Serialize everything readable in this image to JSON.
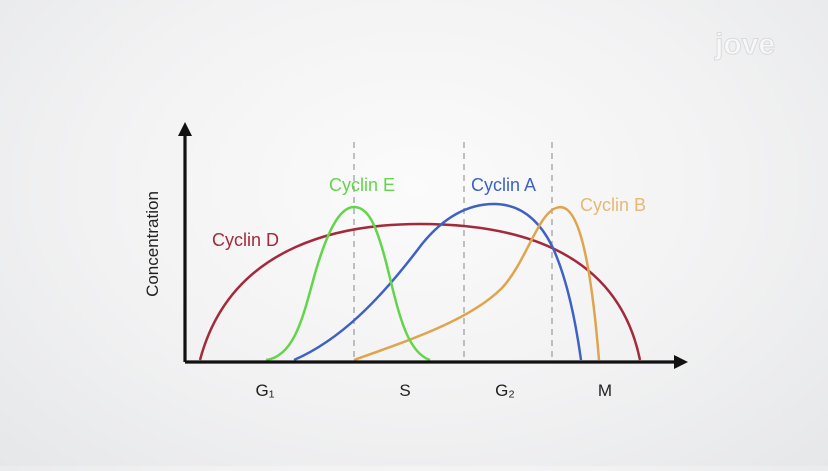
{
  "brand": {
    "logo_text": "jove"
  },
  "axes": {
    "ylabel": "Concentration",
    "phases": [
      "G₁",
      "S",
      "G₂",
      "M"
    ]
  },
  "curves": [
    {
      "key": "cyclin_d",
      "label": "Cyclin D",
      "color": "#a32a3a"
    },
    {
      "key": "cyclin_e",
      "label": "Cyclin E",
      "color": "#63d54a"
    },
    {
      "key": "cyclin_a",
      "label": "Cyclin A",
      "color": "#3e62c4"
    },
    {
      "key": "cyclin_b",
      "label": "Cyclin B",
      "color": "#e0a54c"
    }
  ],
  "colors": {
    "axis": "#111111",
    "divider": "#9a9a9a"
  }
}
